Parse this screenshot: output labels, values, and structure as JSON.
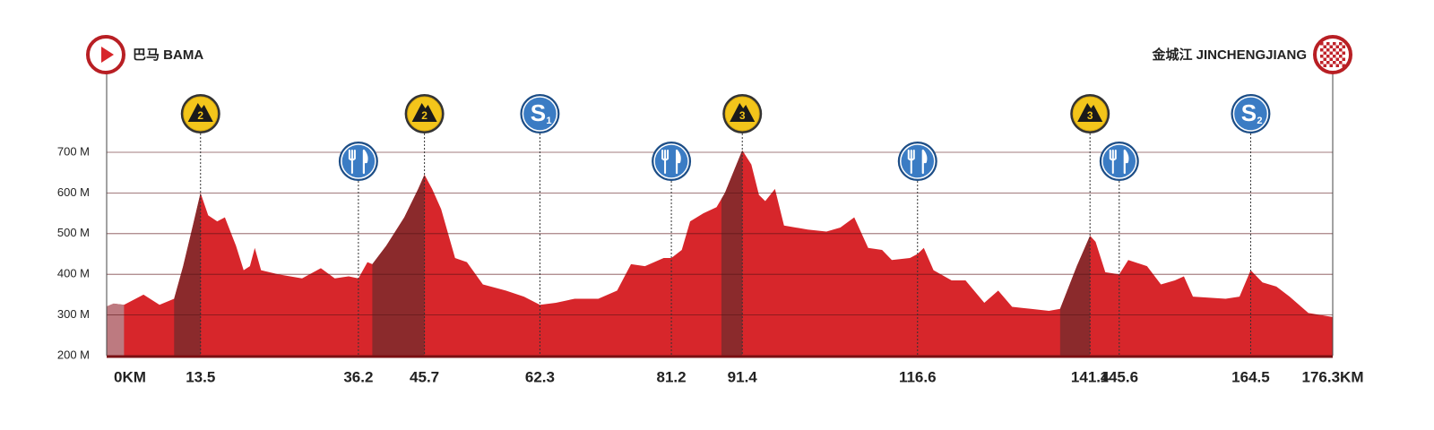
{
  "chart_data": {
    "type": "area",
    "start": "巴马  BAMA",
    "finish": "金城江  JINCHENGJIANG",
    "x": [
      0,
      1.0,
      2.5,
      5.3,
      7.6,
      9.7,
      11.0,
      12.4,
      13.5,
      14.6,
      15.9,
      17.0,
      18.6,
      19.7,
      20.6,
      21.3,
      22.2,
      24.7,
      28.1,
      30.8,
      32.8,
      34.8,
      36.2,
      37.5,
      38.2,
      40.2,
      42.8,
      44.8,
      45.7,
      46.8,
      48.1,
      50.1,
      51.8,
      54.1,
      57.4,
      60.0,
      62.3,
      64.6,
      67.3,
      70.7,
      73.4,
      75.4,
      77.4,
      80.1,
      81.2,
      82.7,
      83.9,
      85.8,
      87.7,
      88.9,
      90.8,
      91.4,
      92.7,
      93.8,
      94.7,
      96.1,
      97.4,
      100.8,
      103.5,
      105.5,
      107.5,
      109.5,
      111.5,
      112.9,
      115.5,
      116.6,
      117.5,
      118.9,
      121.5,
      123.5,
      126.2,
      128.2,
      130.2,
      132.9,
      135.5,
      137.1,
      139.5,
      141.4,
      142.2,
      143.6,
      145.6,
      146.9,
      149.6,
      151.6,
      153.6,
      154.9,
      156.2,
      160.9,
      162.9,
      164.5,
      166.2,
      168.2,
      170.1,
      172.8,
      176.3
    ],
    "values": [
      321,
      328,
      325,
      350,
      325,
      340,
      420,
      520,
      600,
      545,
      530,
      540,
      470,
      410,
      420,
      465,
      410,
      400,
      390,
      415,
      390,
      395,
      390,
      430,
      425,
      470,
      540,
      610,
      645,
      610,
      560,
      440,
      430,
      375,
      360,
      345,
      325,
      330,
      340,
      340,
      360,
      425,
      420,
      440,
      440,
      460,
      530,
      550,
      565,
      600,
      680,
      705,
      670,
      595,
      580,
      610,
      520,
      510,
      505,
      515,
      540,
      465,
      460,
      435,
      440,
      450,
      465,
      410,
      385,
      385,
      330,
      360,
      320,
      315,
      310,
      315,
      420,
      495,
      480,
      405,
      400,
      435,
      420,
      375,
      385,
      395,
      345,
      340,
      345,
      410,
      380,
      370,
      345,
      305,
      295
    ],
    "color": "#d7262b",
    "climb_color": "#8b2a2c",
    "neutral_color": "#bd7a80",
    "neutral_zone": [
      0,
      2.5
    ],
    "xlim": [
      0,
      176.3
    ],
    "ylim": [
      200,
      700
    ],
    "xticks": [
      {
        "value": 0,
        "label": "0KM"
      },
      13.5,
      36.2,
      45.7,
      62.3,
      81.2,
      91.4,
      116.6,
      141.4,
      145.6,
      164.5,
      {
        "value": 176.3,
        "label": "176.3KM"
      }
    ],
    "yticks": [
      {
        "value": 200,
        "label": "200 M"
      },
      {
        "value": 300,
        "label": "300 M"
      },
      {
        "value": 400,
        "label": "400 M"
      },
      {
        "value": 500,
        "label": "500 M"
      },
      {
        "value": 600,
        "label": "600 M"
      },
      {
        "value": 700,
        "label": "700 M"
      }
    ],
    "grid": true,
    "markers": [
      {
        "type": "climb",
        "x": 13.5,
        "from": 9.7,
        "label": "2"
      },
      {
        "type": "feed",
        "x": 36.2
      },
      {
        "type": "climb",
        "x": 45.7,
        "from": 38.2,
        "label": "2"
      },
      {
        "type": "sprint",
        "x": 62.3,
        "label": "S",
        "sub": "1"
      },
      {
        "type": "feed",
        "x": 81.2
      },
      {
        "type": "climb",
        "x": 91.4,
        "from": 88.4,
        "label": "3"
      },
      {
        "type": "feed",
        "x": 116.6
      },
      {
        "type": "climb",
        "x": 141.4,
        "from": 137.1,
        "label": "3"
      },
      {
        "type": "feed",
        "x": 145.6
      },
      {
        "type": "sprint",
        "x": 164.5,
        "label": "S",
        "sub": "2"
      }
    ]
  }
}
